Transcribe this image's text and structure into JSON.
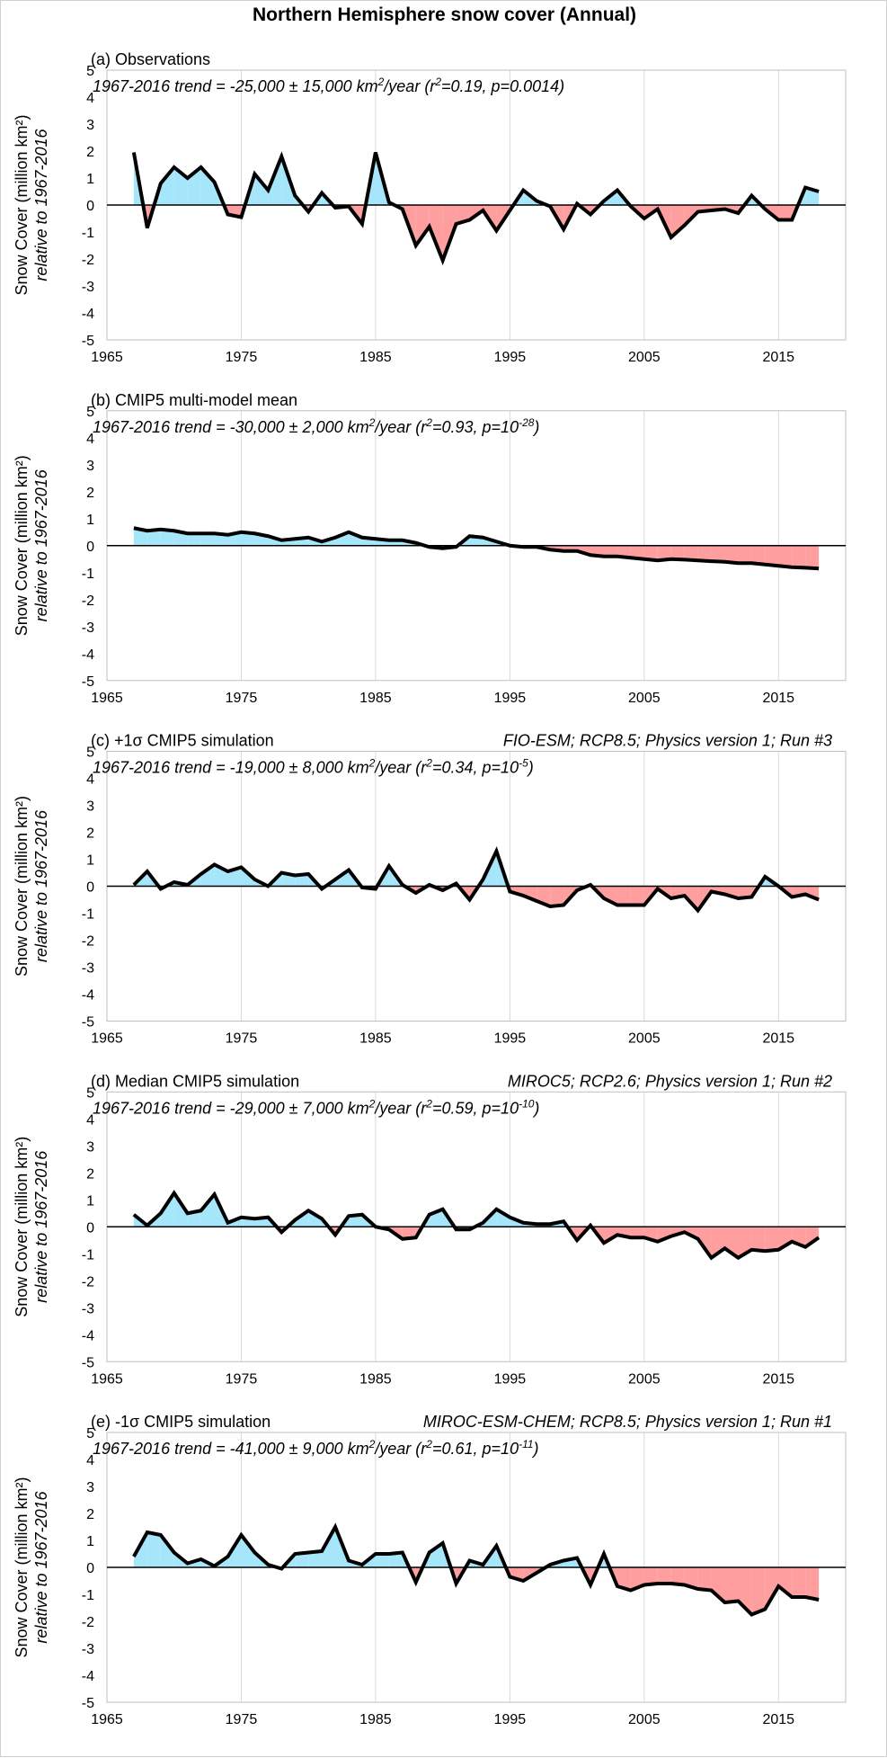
{
  "title": "Northern Hemisphere snow cover (Annual)",
  "colors": {
    "positive": "#a6e6fa",
    "negative": "#ff9e9e",
    "line": "#000000",
    "grid": "#d9d9d9"
  },
  "chart_data": [
    {
      "type": "area",
      "panel_title": "(a) Observations",
      "model": "",
      "trend": {
        "text": "1967-2016 trend = -25,000 ± 15,000 km",
        "sup1": "2",
        "mid": "/year (r",
        "sup2": "2",
        "tail": "=0.19, p=0.0014)",
        "sup3": "",
        "end": ""
      },
      "ylabel": "Snow Cover (million km²)",
      "ylabel2": "relative to 1967-2016",
      "xlim": [
        1965,
        2020
      ],
      "ylim": [
        -5,
        5
      ],
      "xticks": [
        1965,
        1975,
        1985,
        1995,
        2005,
        2015
      ],
      "yticks": [
        5,
        4,
        3,
        2,
        1,
        0,
        -1,
        -2,
        -3,
        -4,
        -5
      ],
      "grid": true,
      "x_start": 1967,
      "values": [
        1.95,
        -0.85,
        0.8,
        1.4,
        1.0,
        1.4,
        0.85,
        -0.35,
        -0.45,
        1.15,
        0.55,
        1.8,
        0.35,
        -0.25,
        0.45,
        -0.1,
        -0.05,
        -0.7,
        1.95,
        0.1,
        -0.15,
        -1.5,
        -0.8,
        -2.05,
        -0.7,
        -0.55,
        -0.2,
        -0.95,
        -0.2,
        0.55,
        0.15,
        -0.05,
        -0.9,
        0.05,
        -0.35,
        0.15,
        0.55,
        -0.05,
        -0.5,
        -0.15,
        -1.2,
        -0.75,
        -0.25,
        -0.2,
        -0.15,
        -0.3,
        0.35,
        -0.15,
        -0.55,
        -0.55,
        0.65,
        0.5
      ]
    },
    {
      "type": "area",
      "panel_title": "(b) CMIP5 multi-model mean",
      "model": "",
      "trend": {
        "text": "1967-2016 trend = -30,000 ± 2,000 km",
        "sup1": "2",
        "mid": "/year (r",
        "sup2": "2",
        "tail": "=0.93, p=10",
        "sup3": "-28",
        "end": ")"
      },
      "ylabel": "Snow Cover (million km²)",
      "ylabel2": "relative to 1967-2016",
      "xlim": [
        1965,
        2020
      ],
      "ylim": [
        -5,
        5
      ],
      "xticks": [
        1965,
        1975,
        1985,
        1995,
        2005,
        2015
      ],
      "yticks": [
        5,
        4,
        3,
        2,
        1,
        0,
        -1,
        -2,
        -3,
        -4,
        -5
      ],
      "grid": true,
      "x_start": 1967,
      "values": [
        0.65,
        0.55,
        0.6,
        0.55,
        0.45,
        0.45,
        0.45,
        0.4,
        0.5,
        0.45,
        0.35,
        0.2,
        0.25,
        0.3,
        0.15,
        0.3,
        0.5,
        0.3,
        0.25,
        0.2,
        0.2,
        0.1,
        -0.05,
        -0.1,
        -0.05,
        0.35,
        0.3,
        0.15,
        0.0,
        -0.05,
        -0.05,
        -0.15,
        -0.2,
        -0.2,
        -0.35,
        -0.4,
        -0.4,
        -0.45,
        -0.5,
        -0.55,
        -0.5,
        -0.52,
        -0.55,
        -0.58,
        -0.6,
        -0.65,
        -0.65,
        -0.7,
        -0.75,
        -0.8,
        -0.82,
        -0.85
      ]
    },
    {
      "type": "area",
      "panel_title": "(c) +1σ CMIP5 simulation",
      "model": "FIO-ESM; RCP8.5; Physics version 1; Run #3",
      "trend": {
        "text": "1967-2016 trend = -19,000 ± 8,000 km",
        "sup1": "2",
        "mid": "/year (r",
        "sup2": "2",
        "tail": "=0.34, p=10",
        "sup3": "-5",
        "end": ")"
      },
      "ylabel": "Snow Cover (million km²)",
      "ylabel2": "relative to 1967-2016",
      "xlim": [
        1965,
        2020
      ],
      "ylim": [
        -5,
        5
      ],
      "xticks": [
        1965,
        1975,
        1985,
        1995,
        2005,
        2015
      ],
      "yticks": [
        5,
        4,
        3,
        2,
        1,
        0,
        -1,
        -2,
        -3,
        -4,
        -5
      ],
      "grid": true,
      "x_start": 1967,
      "values": [
        0.05,
        0.55,
        -0.1,
        0.15,
        0.05,
        0.45,
        0.8,
        0.55,
        0.7,
        0.25,
        0.0,
        0.5,
        0.4,
        0.45,
        -0.1,
        0.25,
        0.6,
        -0.05,
        -0.1,
        0.75,
        0.05,
        -0.25,
        0.05,
        -0.15,
        0.1,
        -0.5,
        0.25,
        1.3,
        -0.2,
        -0.35,
        -0.55,
        -0.75,
        -0.7,
        -0.15,
        0.05,
        -0.45,
        -0.7,
        -0.7,
        -0.7,
        -0.1,
        -0.45,
        -0.35,
        -0.9,
        -0.2,
        -0.3,
        -0.45,
        -0.4,
        0.35,
        0.0,
        -0.4,
        -0.3,
        -0.5
      ]
    },
    {
      "type": "area",
      "panel_title": "(d) Median CMIP5 simulation",
      "model": "MIROC5; RCP2.6; Physics version 1; Run #2",
      "trend": {
        "text": "1967-2016 trend = -29,000 ± 7,000 km",
        "sup1": "2",
        "mid": "/year (r",
        "sup2": "2",
        "tail": "=0.59, p=10",
        "sup3": "-10",
        "end": ")"
      },
      "ylabel": "Snow Cover (million km²)",
      "ylabel2": "relative to 1967-2016",
      "xlim": [
        1965,
        2020
      ],
      "ylim": [
        -5,
        5
      ],
      "xticks": [
        1965,
        1975,
        1985,
        1995,
        2005,
        2015
      ],
      "yticks": [
        5,
        4,
        3,
        2,
        1,
        0,
        -1,
        -2,
        -3,
        -4,
        -5
      ],
      "grid": true,
      "x_start": 1967,
      "values": [
        0.45,
        0.05,
        0.5,
        1.25,
        0.5,
        0.6,
        1.2,
        0.15,
        0.35,
        0.3,
        0.35,
        -0.2,
        0.25,
        0.6,
        0.3,
        -0.3,
        0.4,
        0.45,
        0.0,
        -0.1,
        -0.45,
        -0.4,
        0.45,
        0.65,
        -0.1,
        -0.1,
        0.15,
        0.65,
        0.35,
        0.15,
        0.1,
        0.1,
        0.2,
        -0.5,
        0.05,
        -0.6,
        -0.3,
        -0.4,
        -0.4,
        -0.55,
        -0.35,
        -0.2,
        -0.45,
        -1.15,
        -0.8,
        -1.15,
        -0.85,
        -0.9,
        -0.85,
        -0.55,
        -0.75,
        -0.4
      ]
    },
    {
      "type": "area",
      "panel_title": "(e) -1σ CMIP5 simulation",
      "model": "MIROC-ESM-CHEM; RCP8.5; Physics version 1; Run #1",
      "trend": {
        "text": "1967-2016 trend = -41,000 ± 9,000 km",
        "sup1": "2",
        "mid": "/year (r",
        "sup2": "2",
        "tail": "=0.61, p=10",
        "sup3": "-11",
        "end": ")"
      },
      "ylabel": "Snow Cover (million km²)",
      "ylabel2": "relative to 1967-2016",
      "xlim": [
        1965,
        2020
      ],
      "ylim": [
        -5,
        5
      ],
      "xticks": [
        1965,
        1975,
        1985,
        1995,
        2005,
        2015
      ],
      "yticks": [
        5,
        4,
        3,
        2,
        1,
        0,
        -1,
        -2,
        -3,
        -4,
        -5
      ],
      "grid": true,
      "x_start": 1967,
      "values": [
        0.4,
        1.3,
        1.2,
        0.55,
        0.15,
        0.3,
        0.05,
        0.4,
        1.2,
        0.55,
        0.1,
        -0.05,
        0.5,
        0.55,
        0.6,
        1.5,
        0.25,
        0.1,
        0.5,
        0.5,
        0.55,
        -0.55,
        0.55,
        0.9,
        -0.6,
        0.25,
        0.1,
        0.8,
        -0.35,
        -0.5,
        -0.2,
        0.1,
        0.25,
        0.35,
        -0.65,
        0.5,
        -0.7,
        -0.85,
        -0.65,
        -0.6,
        -0.6,
        -0.65,
        -0.8,
        -0.85,
        -1.3,
        -1.25,
        -1.75,
        -1.55,
        -0.7,
        -1.1,
        -1.1,
        -1.2
      ]
    }
  ]
}
